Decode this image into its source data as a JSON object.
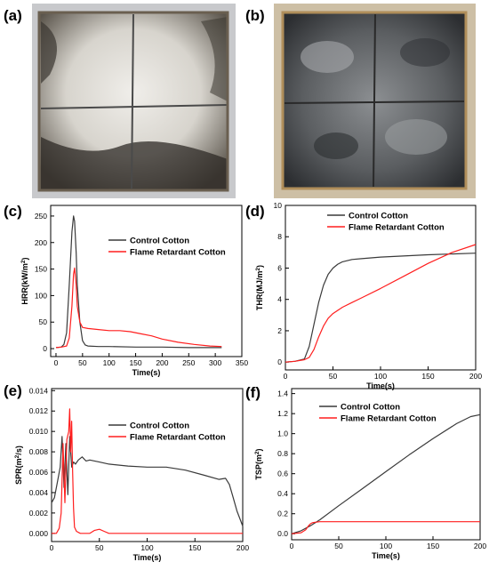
{
  "panel_labels": {
    "a": "(a)",
    "b": "(b)",
    "c": "(c)",
    "d": "(d)",
    "e": "(e)",
    "f": "(f)"
  },
  "photos": [
    {
      "panel": "a",
      "name": "control-cotton-residue-photo",
      "surface": "#d9d6cf",
      "char": "#2d2a25",
      "foil": "#c8c9cc"
    },
    {
      "panel": "b",
      "name": "flame-retardant-cotton-residue-photo",
      "surface": "#6c6f72",
      "char": "#2c2e31",
      "foil": "#cdbfa5"
    }
  ],
  "colors": {
    "control": "#3a3a3a",
    "flame_retardant": "#ff1f1f"
  },
  "chart_data": [
    {
      "panel": "c",
      "type": "line",
      "title": "",
      "xlabel": "Time(s)",
      "ylabel": "HRR(kW/m²)",
      "xlim": [
        -10,
        350
      ],
      "ylim": [
        -15,
        270
      ],
      "xticks": [
        0,
        50,
        100,
        150,
        200,
        250,
        300,
        350
      ],
      "yticks": [
        0,
        50,
        100,
        150,
        200,
        250
      ],
      "grid": false,
      "legend_position": "top-right",
      "series": [
        {
          "name": "Control Cotton",
          "color": "#3a3a3a",
          "x": [
            0,
            10,
            15,
            20,
            25,
            30,
            33,
            35,
            38,
            40,
            45,
            50,
            55,
            60,
            80,
            100,
            150,
            200,
            250,
            300,
            312
          ],
          "y": [
            2,
            3,
            8,
            30,
            120,
            220,
            250,
            240,
            180,
            120,
            50,
            15,
            7,
            5,
            4,
            4,
            3,
            3,
            2,
            2,
            2
          ]
        },
        {
          "name": "Flame Retardant Cotton",
          "color": "#ff1f1f",
          "x": [
            0,
            10,
            20,
            25,
            30,
            33,
            35,
            38,
            40,
            45,
            50,
            60,
            80,
            100,
            120,
            140,
            160,
            180,
            200,
            230,
            260,
            290,
            312
          ],
          "y": [
            2,
            3,
            5,
            20,
            80,
            140,
            152,
            120,
            80,
            50,
            40,
            38,
            36,
            34,
            34,
            32,
            28,
            24,
            18,
            12,
            8,
            5,
            4
          ]
        }
      ]
    },
    {
      "panel": "d",
      "type": "line",
      "title": "",
      "xlabel": "Time(s)",
      "ylabel": "THR(MJ/m²)",
      "xlim": [
        0,
        200
      ],
      "ylim": [
        -0.5,
        10
      ],
      "xticks": [
        0,
        50,
        100,
        150,
        200
      ],
      "yticks": [
        0,
        2,
        4,
        6,
        8,
        10
      ],
      "grid": false,
      "legend_position": "top-right",
      "series": [
        {
          "name": "Control Cotton",
          "color": "#3a3a3a",
          "x": [
            0,
            10,
            20,
            25,
            30,
            35,
            40,
            45,
            50,
            55,
            60,
            70,
            80,
            100,
            150,
            200
          ],
          "y": [
            0,
            0.05,
            0.2,
            1.0,
            2.4,
            3.8,
            4.9,
            5.6,
            6.0,
            6.25,
            6.4,
            6.55,
            6.6,
            6.7,
            6.85,
            6.95
          ]
        },
        {
          "name": "Flame Retardant Cotton",
          "color": "#ff1f1f",
          "x": [
            0,
            10,
            20,
            25,
            30,
            35,
            40,
            45,
            50,
            60,
            70,
            80,
            100,
            125,
            150,
            175,
            200
          ],
          "y": [
            0,
            0.05,
            0.15,
            0.3,
            0.8,
            1.6,
            2.3,
            2.8,
            3.1,
            3.5,
            3.8,
            4.1,
            4.7,
            5.5,
            6.3,
            7.0,
            7.5
          ]
        }
      ]
    },
    {
      "panel": "e",
      "type": "line",
      "title": "",
      "xlabel": "Time(s)",
      "ylabel": "SPR(m²/s)",
      "xlim": [
        0,
        200
      ],
      "ylim": [
        -0.0008,
        0.0142
      ],
      "xticks": [
        0,
        50,
        100,
        150,
        200
      ],
      "yticks": [
        0.0,
        0.002,
        0.004,
        0.006,
        0.008,
        0.01,
        0.012,
        0.014
      ],
      "ytick_labels": [
        "0.000",
        "0.002",
        "0.004",
        "0.006",
        "0.008",
        "0.010",
        "0.012",
        "0.014"
      ],
      "grid": false,
      "legend_position": "top-right",
      "series": [
        {
          "name": "Control Cotton",
          "color": "#3a3a3a",
          "x": [
            0,
            3,
            6,
            9,
            11,
            13,
            15,
            17,
            19,
            21,
            23,
            25,
            28,
            32,
            36,
            40,
            50,
            60,
            80,
            100,
            120,
            140,
            160,
            175,
            182,
            186,
            190,
            194,
            198,
            200
          ],
          "y": [
            0.003,
            0.0035,
            0.005,
            0.0065,
            0.0095,
            0.0045,
            0.0088,
            0.0038,
            0.0095,
            0.0065,
            0.007,
            0.0068,
            0.0072,
            0.0075,
            0.0071,
            0.0072,
            0.007,
            0.0068,
            0.0066,
            0.0065,
            0.0065,
            0.0062,
            0.0057,
            0.0053,
            0.0054,
            0.0048,
            0.0035,
            0.0022,
            0.0012,
            0.0007
          ]
        },
        {
          "name": "Flame Retardant Cotton",
          "color": "#ff1f1f",
          "x": [
            0,
            5,
            8,
            10,
            12,
            14,
            16,
            18,
            19,
            20,
            21,
            22,
            23,
            24,
            26,
            30,
            40,
            45,
            50,
            55,
            60,
            100,
            150,
            200
          ],
          "y": [
            0,
            0,
            0.0005,
            0.002,
            0.0088,
            0.003,
            0.0092,
            0.01,
            0.0122,
            0.008,
            0.011,
            0.006,
            0.0025,
            0.0006,
            0.0002,
            0,
            0,
            0.0003,
            0.0004,
            0.0002,
            0,
            0,
            0,
            0
          ]
        }
      ]
    },
    {
      "panel": "f",
      "type": "line",
      "title": "",
      "xlabel": "Time(s)",
      "ylabel": "TSP(m²)",
      "xlim": [
        0,
        200
      ],
      "ylim": [
        -0.06,
        1.45
      ],
      "xticks": [
        0,
        50,
        100,
        150,
        200
      ],
      "yticks": [
        0.0,
        0.2,
        0.4,
        0.6,
        0.8,
        1.0,
        1.2,
        1.4
      ],
      "ytick_labels": [
        "0.0",
        "0.2",
        "0.4",
        "0.6",
        "0.8",
        "1.0",
        "1.2",
        "1.4"
      ],
      "grid": false,
      "legend_position": "top-right",
      "series": [
        {
          "name": "Control Cotton",
          "color": "#3a3a3a",
          "x": [
            0,
            10,
            20,
            30,
            50,
            75,
            100,
            125,
            150,
            175,
            190,
            200
          ],
          "y": [
            0,
            0.03,
            0.08,
            0.14,
            0.28,
            0.45,
            0.62,
            0.79,
            0.95,
            1.1,
            1.17,
            1.19
          ]
        },
        {
          "name": "Flame Retardant Cotton",
          "color": "#ff1f1f",
          "x": [
            0,
            10,
            15,
            18,
            20,
            22,
            25,
            30,
            50,
            100,
            150,
            200
          ],
          "y": [
            0,
            0.01,
            0.04,
            0.08,
            0.1,
            0.11,
            0.115,
            0.12,
            0.12,
            0.12,
            0.12,
            0.12
          ]
        }
      ]
    }
  ]
}
